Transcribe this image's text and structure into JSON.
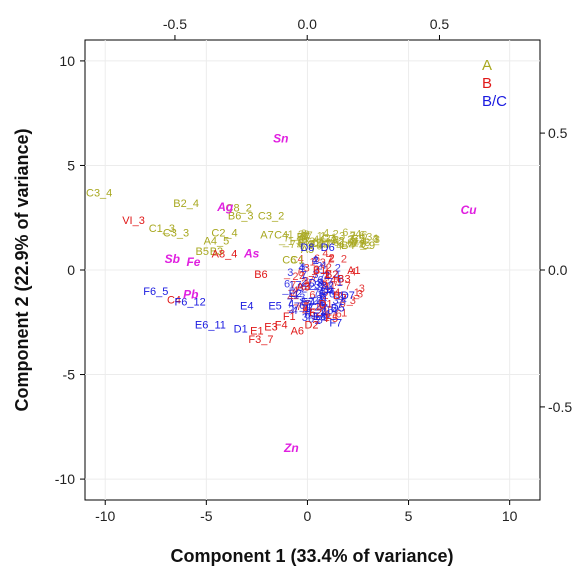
{
  "chart_data": {
    "type": "scatter",
    "subtype": "biplot",
    "xlabel": "Component 1 (33.4% of variance)",
    "ylabel": "Component 2 (22.9% of variance)",
    "xlim": [
      -11,
      11.5
    ],
    "ylim": [
      -11,
      11
    ],
    "xticks": [
      -10,
      -5,
      0,
      5,
      10
    ],
    "yticks": [
      -10,
      -5,
      0,
      5,
      10
    ],
    "x_tick_labels": [
      "-10",
      "-5",
      "0",
      "5",
      "10"
    ],
    "y_tick_labels": [
      "-10",
      "-5",
      "0",
      "5",
      "10"
    ],
    "secondary_xlim": [
      -0.84,
      0.88
    ],
    "secondary_ylim": [
      -0.84,
      0.84
    ],
    "secondary_xticks": [
      -0.5,
      0.0,
      0.5
    ],
    "secondary_yticks": [
      -0.5,
      0.0,
      0.5
    ],
    "secondary_x_tick_labels": [
      "-0.5",
      "0.0",
      "0.5"
    ],
    "secondary_y_tick_labels": [
      "-0.5",
      "0.0",
      "0.5"
    ],
    "grid": true,
    "legend_position": "top-right",
    "series": [
      {
        "name": "A",
        "color": "#a8a820",
        "points": [
          {
            "label": "C3_4",
            "x": -10.3,
            "y": 3.7
          },
          {
            "label": "B2_4",
            "x": -6.0,
            "y": 3.2
          },
          {
            "label": "C1_3",
            "x": -7.2,
            "y": 2.0
          },
          {
            "label": "C3_3",
            "x": -6.5,
            "y": 1.8
          },
          {
            "label": "A4_5",
            "x": -4.5,
            "y": 1.4
          },
          {
            "label": "C2_4",
            "x": -4.1,
            "y": 1.8
          },
          {
            "label": "B5",
            "x": -5.2,
            "y": 0.9
          },
          {
            "label": "B3",
            "x": -4.5,
            "y": 0.9
          },
          {
            "label": "C8_2",
            "x": -3.4,
            "y": 3.0
          },
          {
            "label": "B6_3",
            "x": -3.3,
            "y": 2.6
          },
          {
            "label": "C3_2",
            "x": -1.8,
            "y": 2.6
          },
          {
            "label": "A7",
            "x": -2.0,
            "y": 1.7
          },
          {
            "label": "C4",
            "x": -1.3,
            "y": 1.7
          },
          {
            "label": "C6",
            "x": -0.9,
            "y": 0.5
          },
          {
            "label": "C1",
            "x": -0.5,
            "y": 0.5
          },
          {
            "label": "C2",
            "x": 0.5,
            "y": 1.3
          },
          {
            "label": "C7",
            "x": 1.0,
            "y": 1.5
          },
          {
            "label": "A2",
            "x": 1.5,
            "y": 1.4
          },
          {
            "label": "B4",
            "x": 2.0,
            "y": 1.2
          },
          {
            "label": "C5",
            "x": 2.5,
            "y": 1.5
          },
          {
            "label": "C9",
            "x": 3.0,
            "y": 1.2
          },
          {
            "label": "A5",
            "x": 0.0,
            "y": 1.0
          },
          {
            "label": "B7",
            "x": -0.2,
            "y": 1.6
          }
        ]
      },
      {
        "name": "B",
        "color": "#e01818",
        "points": [
          {
            "label": "VI_3",
            "x": -8.6,
            "y": 2.4
          },
          {
            "label": "A8_4",
            "x": -4.1,
            "y": 0.8
          },
          {
            "label": "C4",
            "x": -6.6,
            "y": -1.4
          },
          {
            "label": "B6",
            "x": -2.3,
            "y": -0.2
          },
          {
            "label": "F3_7",
            "x": -2.3,
            "y": -3.3
          },
          {
            "label": "E3",
            "x": -1.8,
            "y": -2.7
          },
          {
            "label": "E1",
            "x": -2.5,
            "y": -2.9
          },
          {
            "label": "F4",
            "x": -1.3,
            "y": -2.6
          },
          {
            "label": "A6",
            "x": -0.5,
            "y": -2.9
          },
          {
            "label": "B1",
            "x": 0.6,
            "y": 0.0
          },
          {
            "label": "B2",
            "x": 1.2,
            "y": -0.2
          },
          {
            "label": "B3",
            "x": 1.8,
            "y": -0.4
          },
          {
            "label": "B5",
            "x": 1.6,
            "y": -1.2
          },
          {
            "label": "F2",
            "x": 0.4,
            "y": -2.0
          },
          {
            "label": "F5",
            "x": 1.2,
            "y": -2.3
          },
          {
            "label": "A1",
            "x": 2.3,
            "y": 0.0
          },
          {
            "label": "A3",
            "x": -0.2,
            "y": -0.8
          },
          {
            "label": "D1",
            "x": 0.9,
            "y": -1.6
          },
          {
            "label": "D2",
            "x": 0.2,
            "y": -2.6
          },
          {
            "label": "F1",
            "x": -0.9,
            "y": -2.2
          }
        ]
      },
      {
        "name": "B/C",
        "color": "#1a1ae0",
        "points": [
          {
            "label": "D8",
            "x": 0.0,
            "y": 1.1
          },
          {
            "label": "D6",
            "x": 1.0,
            "y": 1.1
          },
          {
            "label": "F6_5",
            "x": -7.5,
            "y": -1.0
          },
          {
            "label": "F6_12",
            "x": -5.8,
            "y": -1.5
          },
          {
            "label": "E4",
            "x": -3.0,
            "y": -1.7
          },
          {
            "label": "E6_11",
            "x": -4.8,
            "y": -2.6
          },
          {
            "label": "E5",
            "x": -1.6,
            "y": -1.7
          },
          {
            "label": "D1",
            "x": -3.3,
            "y": -2.8
          },
          {
            "label": "E2",
            "x": -0.6,
            "y": -1.1
          },
          {
            "label": "D3",
            "x": 0.4,
            "y": -0.6
          },
          {
            "label": "D4",
            "x": 1.0,
            "y": -1.0
          },
          {
            "label": "D5",
            "x": 1.5,
            "y": -1.8
          },
          {
            "label": "D7",
            "x": 2.0,
            "y": -1.2
          },
          {
            "label": "E7",
            "x": 0.0,
            "y": -1.5
          },
          {
            "label": "E8",
            "x": 0.6,
            "y": -2.2
          },
          {
            "label": "F7",
            "x": 1.4,
            "y": -2.5
          }
        ]
      }
    ],
    "variables": [
      {
        "label": "Sn",
        "x": -0.1,
        "y": 0.48
      },
      {
        "label": "Cu",
        "x": 0.61,
        "y": 0.22
      },
      {
        "label": "Ag",
        "x": -0.31,
        "y": 0.23
      },
      {
        "label": "As",
        "x": -0.21,
        "y": 0.06
      },
      {
        "label": "Sb",
        "x": -0.51,
        "y": 0.04
      },
      {
        "label": "Fe",
        "x": -0.43,
        "y": 0.03
      },
      {
        "label": "Pb",
        "x": -0.44,
        "y": -0.09
      },
      {
        "label": "Zn",
        "x": -0.06,
        "y": -0.65
      }
    ]
  }
}
